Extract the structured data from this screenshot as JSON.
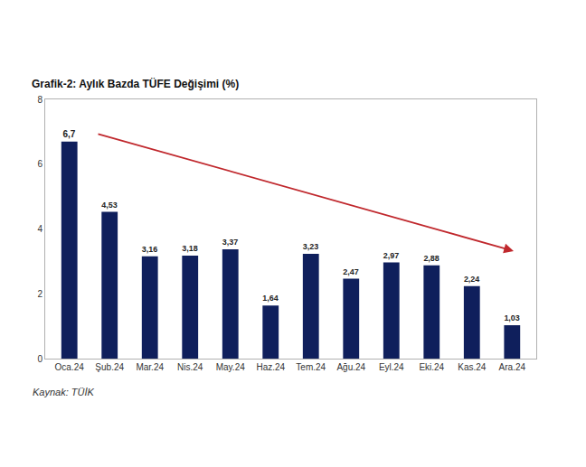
{
  "chart_data": {
    "type": "bar",
    "title": "Grafik-2: Aylık Bazda TÜFE Değişimi (%)",
    "source": "Kaynak: TÜİK",
    "categories": [
      "Oca.24",
      "Şub.24",
      "Mar.24",
      "Nis.24",
      "May.24",
      "Haz.24",
      "Tem.24",
      "Ağu.24",
      "Eyl.24",
      "Eki.24",
      "Kas.24",
      "Ara.24"
    ],
    "values": [
      6.7,
      4.53,
      3.16,
      3.18,
      3.37,
      1.64,
      3.23,
      2.47,
      2.97,
      2.88,
      2.24,
      1.03
    ],
    "value_labels": [
      "6,7",
      "4,53",
      "3,16",
      "3,18",
      "3,37",
      "1,64",
      "3,23",
      "2,47",
      "2,97",
      "2,88",
      "2,24",
      "1,03"
    ],
    "color": "#0f1f5c",
    "ylim": [
      0,
      8
    ],
    "yticks": [
      0,
      2,
      4,
      6,
      8
    ],
    "grid": false,
    "data_labels": true
  }
}
